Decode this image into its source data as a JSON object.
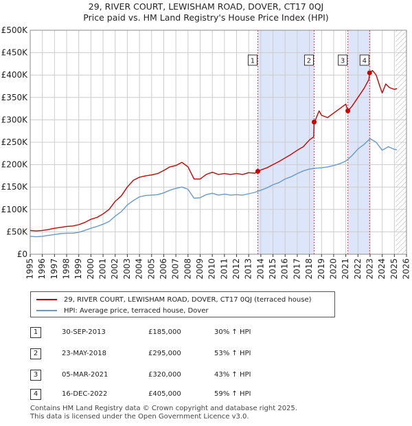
{
  "header": {
    "title_line1": "29, RIVER COURT, LEWISHAM ROAD, DOVER, CT17 0QJ",
    "title_line2": "Price paid vs. HM Land Registry's House Price Index (HPI)"
  },
  "colors": {
    "property": "#cc0000",
    "hpi": "#6699cc",
    "shade": "#dde6f8",
    "grid": "#cccccc",
    "marker_line": "#cc4444"
  },
  "chart_data": {
    "type": "line",
    "title": "29, RIVER COURT, LEWISHAM ROAD, DOVER, CT17 0QJ",
    "subtitle": "Price paid vs. HM Land Registry's House Price Index (HPI)",
    "xlabel": "",
    "ylabel": "",
    "xlim": [
      1995,
      2026
    ],
    "ylim": [
      0,
      500000
    ],
    "grid": true,
    "legend_position": "below",
    "y_ticks": [
      0,
      50000,
      100000,
      150000,
      200000,
      250000,
      300000,
      350000,
      400000,
      450000,
      500000
    ],
    "y_tick_labels": [
      "£0",
      "£50K",
      "£100K",
      "£150K",
      "£200K",
      "£250K",
      "£300K",
      "£350K",
      "£400K",
      "£450K",
      "£500K"
    ],
    "x_ticks": [
      1995,
      1996,
      1997,
      1998,
      1999,
      2000,
      2001,
      2002,
      2003,
      2004,
      2005,
      2006,
      2007,
      2008,
      2009,
      2010,
      2011,
      2012,
      2013,
      2014,
      2015,
      2016,
      2017,
      2018,
      2019,
      2020,
      2021,
      2022,
      2023,
      2024,
      2025,
      2026
    ],
    "x_tick_labels": [
      "1995",
      "1996",
      "1997",
      "1998",
      "1999",
      "2000",
      "2001",
      "2002",
      "2003",
      "2004",
      "2005",
      "2006",
      "2007",
      "2008",
      "2009",
      "2010",
      "2011",
      "2012",
      "2013",
      "2014",
      "2015",
      "2016",
      "2017",
      "2018",
      "2019",
      "2020",
      "2021",
      "2022",
      "2023",
      "2024",
      "2025",
      "2026"
    ],
    "shaded_ranges": [
      [
        2013.75,
        2018.39
      ],
      [
        2021.17,
        2022.96
      ]
    ],
    "future_hatch_start": 2025.1,
    "series": [
      {
        "name": "29, RIVER COURT, LEWISHAM ROAD, DOVER, CT17 0QJ (terraced house)",
        "color": "#cc0000",
        "x": [
          1995.0,
          1995.5,
          1996.0,
          1996.5,
          1997.0,
          1997.5,
          1998.0,
          1998.5,
          1999.0,
          1999.5,
          2000.0,
          2000.5,
          2001.0,
          2001.5,
          2002.0,
          2002.5,
          2003.0,
          2003.5,
          2004.0,
          2004.5,
          2005.0,
          2005.5,
          2006.0,
          2006.5,
          2007.0,
          2007.5,
          2008.0,
          2008.5,
          2009.0,
          2009.5,
          2010.0,
          2010.5,
          2011.0,
          2011.5,
          2012.0,
          2012.5,
          2013.0,
          2013.5,
          2013.75,
          2014.0,
          2014.5,
          2015.0,
          2015.5,
          2016.0,
          2016.5,
          2017.0,
          2017.5,
          2018.0,
          2018.35,
          2018.39,
          2018.5,
          2018.8,
          2019.0,
          2019.5,
          2020.0,
          2020.5,
          2021.0,
          2021.17,
          2021.5,
          2022.0,
          2022.5,
          2022.9,
          2022.96,
          2023.2,
          2023.5,
          2023.8,
          2024.0,
          2024.3,
          2024.6,
          2025.0,
          2025.2
        ],
        "values": [
          53000,
          52000,
          53000,
          55000,
          58000,
          60000,
          62000,
          63000,
          66000,
          71000,
          78000,
          82000,
          90000,
          100000,
          118000,
          130000,
          150000,
          165000,
          172000,
          175000,
          177000,
          180000,
          187000,
          195000,
          198000,
          205000,
          195000,
          168000,
          168000,
          178000,
          183000,
          178000,
          180000,
          178000,
          180000,
          178000,
          182000,
          181000,
          185000,
          188000,
          193000,
          200000,
          207000,
          215000,
          223000,
          232000,
          240000,
          255000,
          262000,
          295000,
          300000,
          320000,
          310000,
          305000,
          315000,
          325000,
          335000,
          320000,
          330000,
          350000,
          370000,
          390000,
          405000,
          410000,
          400000,
          375000,
          360000,
          380000,
          372000,
          368000,
          370000
        ]
      },
      {
        "name": "HPI: Average price, terraced house, Dover",
        "color": "#6699cc",
        "x": [
          1995.0,
          1995.5,
          1996.0,
          1996.5,
          1997.0,
          1997.5,
          1998.0,
          1998.5,
          1999.0,
          1999.5,
          2000.0,
          2000.5,
          2001.0,
          2001.5,
          2002.0,
          2002.5,
          2003.0,
          2003.5,
          2004.0,
          2004.5,
          2005.0,
          2005.5,
          2006.0,
          2006.5,
          2007.0,
          2007.5,
          2008.0,
          2008.5,
          2009.0,
          2009.5,
          2010.0,
          2010.5,
          2011.0,
          2011.5,
          2012.0,
          2012.5,
          2013.0,
          2013.5,
          2014.0,
          2014.5,
          2015.0,
          2015.5,
          2016.0,
          2016.5,
          2017.0,
          2017.5,
          2018.0,
          2018.5,
          2019.0,
          2019.5,
          2020.0,
          2020.5,
          2021.0,
          2021.5,
          2022.0,
          2022.5,
          2023.0,
          2023.5,
          2024.0,
          2024.5,
          2025.0,
          2025.2
        ],
        "values": [
          40000,
          39000,
          40000,
          42000,
          44000,
          46000,
          47000,
          47000,
          49000,
          53000,
          58000,
          62000,
          67000,
          73000,
          85000,
          95000,
          110000,
          120000,
          128000,
          131000,
          132000,
          133000,
          137000,
          143000,
          147000,
          150000,
          145000,
          125000,
          126000,
          133000,
          136000,
          132000,
          134000,
          132000,
          133000,
          132000,
          135000,
          138000,
          143000,
          148000,
          155000,
          160000,
          168000,
          173000,
          180000,
          186000,
          190000,
          192000,
          193000,
          195000,
          198000,
          202000,
          208000,
          220000,
          235000,
          245000,
          258000,
          250000,
          232000,
          240000,
          234000,
          233000
        ]
      }
    ],
    "sales": [
      {
        "marker": "1",
        "x": 2013.75,
        "value": 185000
      },
      {
        "marker": "2",
        "x": 2018.39,
        "value": 295000
      },
      {
        "marker": "3",
        "x": 2021.17,
        "value": 320000
      },
      {
        "marker": "4",
        "x": 2022.96,
        "value": 405000
      }
    ]
  },
  "legend": {
    "property_label": "29, RIVER COURT, LEWISHAM ROAD, DOVER, CT17 0QJ (terraced house)",
    "hpi_label": "HPI: Average price, terraced house, Dover"
  },
  "transactions": [
    {
      "marker": "1",
      "date": "30-SEP-2013",
      "price": "£185,000",
      "hpi": "30% ↑ HPI"
    },
    {
      "marker": "2",
      "date": "23-MAY-2018",
      "price": "£295,000",
      "hpi": "53% ↑ HPI"
    },
    {
      "marker": "3",
      "date": "05-MAR-2021",
      "price": "£320,000",
      "hpi": "43% ↑ HPI"
    },
    {
      "marker": "4",
      "date": "16-DEC-2022",
      "price": "£405,000",
      "hpi": "59% ↑ HPI"
    }
  ],
  "footer": {
    "line1": "Contains HM Land Registry data © Crown copyright and database right 2025.",
    "line2": "This data is licensed under the Open Government Licence v3.0."
  }
}
